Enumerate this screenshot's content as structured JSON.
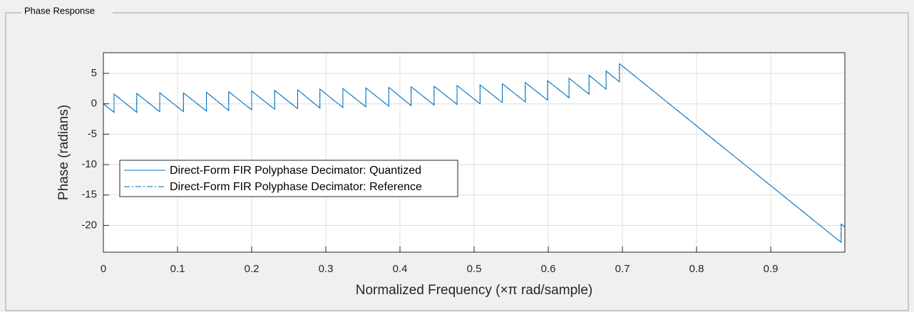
{
  "panel_title": "Phase Response",
  "chart_data": {
    "type": "line",
    "xlabel": "Normalized Frequency (×π rad/sample)",
    "ylabel": "Phase (radians)",
    "xlim": [
      0,
      1
    ],
    "ylim": [
      -24.4,
      8.4
    ],
    "xticks": [
      0,
      0.1,
      0.2,
      0.3,
      0.4,
      0.5,
      0.6,
      0.7,
      0.8,
      0.9
    ],
    "yticks": [
      5,
      0,
      -5,
      -10,
      -15,
      -20
    ],
    "grid": true,
    "legend": "west",
    "x": [
      0,
      0.0144,
      0.0144,
      0.045,
      0.045,
      0.076,
      0.076,
      0.108,
      0.108,
      0.139,
      0.139,
      0.169,
      0.169,
      0.2,
      0.2,
      0.231,
      0.231,
      0.262,
      0.262,
      0.292,
      0.292,
      0.323,
      0.323,
      0.354,
      0.354,
      0.385,
      0.385,
      0.415,
      0.415,
      0.446,
      0.446,
      0.477,
      0.477,
      0.508,
      0.508,
      0.538,
      0.538,
      0.569,
      0.569,
      0.599,
      0.599,
      0.628,
      0.628,
      0.655,
      0.655,
      0.678,
      0.678,
      0.696,
      0.696,
      0.995,
      0.995,
      1
    ],
    "series": [
      {
        "name": "Direct-Form FIR Polyphase Decimator: Quantized",
        "color": "#0072bd",
        "style": "solid",
        "values": [
          0,
          -1.4,
          1.6,
          -1.4,
          1.7,
          -1.3,
          1.8,
          -1.3,
          1.8,
          -1.2,
          1.9,
          -1.1,
          2.0,
          -1.0,
          2.1,
          -0.9,
          2.2,
          -0.8,
          2.3,
          -0.7,
          2.4,
          -0.6,
          2.5,
          -0.5,
          2.6,
          -0.4,
          2.7,
          -0.3,
          2.8,
          -0.2,
          2.9,
          -0.1,
          3.0,
          0.0,
          3.1,
          0.2,
          3.3,
          0.3,
          3.5,
          0.6,
          3.8,
          1.0,
          4.2,
          1.6,
          4.7,
          2.4,
          5.4,
          3.6,
          6.6,
          -22.8,
          -19.8,
          -20.2
        ]
      },
      {
        "name": "Direct-Form FIR Polyphase Decimator: Reference",
        "color": "#0072bd",
        "style": "dashdot",
        "values": [
          0,
          -1.4,
          1.6,
          -1.4,
          1.7,
          -1.3,
          1.8,
          -1.3,
          1.8,
          -1.2,
          1.9,
          -1.1,
          2.0,
          -1.0,
          2.1,
          -0.9,
          2.2,
          -0.8,
          2.3,
          -0.7,
          2.4,
          -0.6,
          2.5,
          -0.5,
          2.6,
          -0.4,
          2.7,
          -0.3,
          2.8,
          -0.2,
          2.9,
          -0.1,
          3.0,
          0.0,
          3.1,
          0.2,
          3.3,
          0.3,
          3.5,
          0.6,
          3.8,
          1.0,
          4.2,
          1.6,
          4.7,
          2.4,
          5.4,
          3.6,
          6.6,
          -22.8,
          -19.8,
          -20.2
        ]
      }
    ]
  }
}
